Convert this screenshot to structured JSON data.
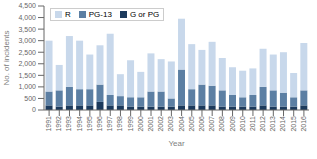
{
  "chart_data": {
    "type": "bar",
    "stacked": true,
    "xlabel": "Year",
    "ylabel": "No. of incidents",
    "categories": [
      "1991",
      "1992",
      "1993",
      "1994",
      "1995",
      "1996",
      "1997",
      "1998",
      "1999",
      "2000",
      "2001",
      "2002",
      "2003",
      "2004",
      "2005",
      "2006",
      "2007",
      "2008",
      "2009",
      "2010",
      "2011",
      "2012",
      "2013",
      "2014",
      "2015",
      "2016"
    ],
    "series": [
      {
        "name": "R",
        "color": "#c8d8eb",
        "values": [
          2200,
          1100,
          2200,
          2100,
          1500,
          1700,
          2650,
          950,
          1600,
          1100,
          1650,
          1400,
          1600,
          2200,
          1950,
          1500,
          1900,
          1400,
          1200,
          1150,
          1150,
          1650,
          1550,
          1750,
          1050,
          2050
        ]
      },
      {
        "name": "PG-13",
        "color": "#5c7fa3",
        "values": [
          600,
          700,
          800,
          700,
          700,
          750,
          450,
          400,
          400,
          400,
          650,
          650,
          350,
          1550,
          700,
          900,
          850,
          700,
          500,
          400,
          500,
          800,
          700,
          600,
          400,
          650
        ]
      },
      {
        "name": "G or PG",
        "color": "#1c3a5c",
        "values": [
          200,
          150,
          200,
          200,
          200,
          350,
          200,
          200,
          150,
          150,
          150,
          150,
          150,
          200,
          200,
          200,
          200,
          150,
          150,
          150,
          150,
          200,
          150,
          150,
          150,
          200
        ]
      }
    ],
    "ylim": [
      0,
      4500
    ],
    "yticks": [
      0,
      500,
      {
        "value": 1000,
        "label": "1,000"
      },
      {
        "value": 1500,
        "label": "1,500"
      },
      {
        "value": 2000,
        "label": "2,000"
      },
      {
        "value": 2500,
        "label": "2,500"
      },
      {
        "value": 3000,
        "label": "3,000"
      },
      {
        "value": 3500,
        "label": "3,500"
      },
      {
        "value": 4000,
        "label": "4,000"
      },
      {
        "value": 4500,
        "label": "4,500"
      }
    ],
    "grid": false,
    "legend": "upper left"
  }
}
